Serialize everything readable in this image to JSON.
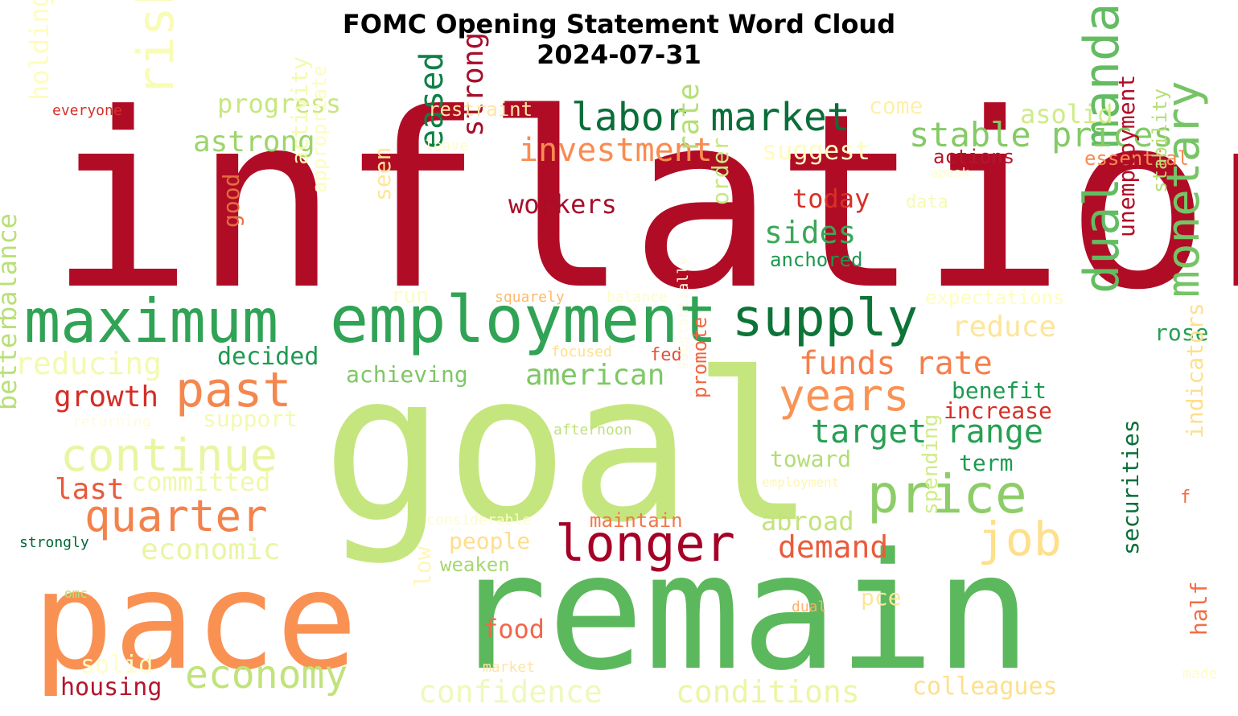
{
  "chart_data": {
    "type": "wordcloud",
    "title": "FOMC Opening Statement Word Cloud",
    "subtitle": "2024-07-31",
    "colormap": "RdYlGn",
    "words": [
      {
        "text": "inflation",
        "color": "#b10c26"
      },
      {
        "text": "goal",
        "color": "#c5e67e"
      },
      {
        "text": "remain",
        "color": "#5cb85c"
      },
      {
        "text": "pace",
        "color": "#f99153"
      },
      {
        "text": "employment",
        "color": "#30a355"
      },
      {
        "text": "maximum",
        "color": "#30a355"
      },
      {
        "text": "supply",
        "color": "#0d7437"
      },
      {
        "text": "monetary",
        "color": "#75c465"
      },
      {
        "text": "dual mandate",
        "color": "#63bc62"
      },
      {
        "text": "labor market",
        "color": "#0b6e3a"
      },
      {
        "text": "stable prices",
        "color": "#84ca66"
      },
      {
        "text": "investment",
        "color": "#f88c51"
      },
      {
        "text": "risks",
        "color": "#f8fcb5"
      },
      {
        "text": "price",
        "color": "#8ccd67"
      },
      {
        "text": "job",
        "color": "#fee08b"
      },
      {
        "text": "years",
        "color": "#f99355"
      },
      {
        "text": "longer",
        "color": "#a50026"
      },
      {
        "text": "past",
        "color": "#f4874d"
      },
      {
        "text": "continue",
        "color": "#eaf5a3"
      },
      {
        "text": "quarter",
        "color": "#f3824b"
      },
      {
        "text": "economy",
        "color": "#c0e37b"
      },
      {
        "text": "target range",
        "color": "#279f53"
      },
      {
        "text": "funds rate",
        "color": "#f67f4b"
      },
      {
        "text": "american",
        "color": "#7ec765"
      },
      {
        "text": "sides",
        "color": "#3aa757"
      },
      {
        "text": "eased",
        "color": "#0f8045"
      },
      {
        "text": "strong",
        "color": "#a50f2b"
      },
      {
        "text": "progress",
        "color": "#c7e77f"
      },
      {
        "text": "astrong",
        "color": "#9cd56b"
      },
      {
        "text": "workers",
        "color": "#a70d2a"
      },
      {
        "text": "today",
        "color": "#d73027"
      },
      {
        "text": "anchored",
        "color": "#1a9850"
      },
      {
        "text": "rate",
        "color": "#b5df75"
      },
      {
        "text": "order",
        "color": "#c8e77f"
      },
      {
        "text": "seen",
        "color": "#fee699"
      },
      {
        "text": "good",
        "color": "#e46d41"
      },
      {
        "text": "activity",
        "color": "#f4fab0"
      },
      {
        "text": "appropriate",
        "color": "#fbfdc0"
      },
      {
        "text": "holdings",
        "color": "#fffcbb"
      },
      {
        "text": "everyone",
        "color": "#d73027"
      },
      {
        "text": "restraint",
        "color": "#fee6a3"
      },
      {
        "text": "come",
        "color": "#fef0a7"
      },
      {
        "text": "suggest",
        "color": "#fffbc0"
      },
      {
        "text": "asolid",
        "color": "#cfeb86"
      },
      {
        "text": "actions",
        "color": "#b3172c"
      },
      {
        "text": "essential",
        "color": "#f88c51"
      },
      {
        "text": "leave",
        "color": "#fefcc8"
      },
      {
        "text": "apeak",
        "color": "#fefdd0"
      },
      {
        "text": "data",
        "color": "#f6fbb2"
      },
      {
        "text": "reduce",
        "color": "#fee59a"
      },
      {
        "text": "expectations",
        "color": "#fefebd"
      },
      {
        "text": "rose",
        "color": "#279f53"
      },
      {
        "text": "stability",
        "color": "#b5df75"
      },
      {
        "text": "unemployment",
        "color": "#b10c26"
      },
      {
        "text": "decided",
        "color": "#1e9a51"
      },
      {
        "text": "achieving",
        "color": "#7ec765"
      },
      {
        "text": "reducing",
        "color": "#f3faaf"
      },
      {
        "text": "growth",
        "color": "#d42d27"
      },
      {
        "text": "run",
        "color": "#fffcc3"
      },
      {
        "text": "squarely",
        "color": "#fdb96c"
      },
      {
        "text": "balance",
        "color": "#fefcc6"
      },
      {
        "text": "focused",
        "color": "#fee08b"
      },
      {
        "text": "fed",
        "color": "#e5503a"
      },
      {
        "text": "benefit",
        "color": "#1c9a51"
      },
      {
        "text": "increase",
        "color": "#d62f27"
      },
      {
        "text": "support",
        "color": "#f3faaf"
      },
      {
        "text": "returning",
        "color": "#fffbdf"
      },
      {
        "text": "better",
        "color": "#b9e078"
      },
      {
        "text": "balance",
        "color": "#b9e078"
      },
      {
        "text": "afternoon",
        "color": "#bfe27b"
      },
      {
        "text": "promote",
        "color": "#f16640"
      },
      {
        "text": "substantially",
        "color": "#fffce0"
      },
      {
        "text": "toward",
        "color": "#b1de72"
      },
      {
        "text": "term",
        "color": "#1e9a51"
      },
      {
        "text": "committed",
        "color": "#f0f8ab"
      },
      {
        "text": "last",
        "color": "#e85a3c"
      },
      {
        "text": "employment",
        "color": "#fef6b5"
      },
      {
        "text": "abroad",
        "color": "#c2e37c"
      },
      {
        "text": "maintain",
        "color": "#f2774a"
      },
      {
        "text": "considerable",
        "color": "#fefccb"
      },
      {
        "text": "people",
        "color": "#fede8c"
      },
      {
        "text": "demand",
        "color": "#ea5c3d"
      },
      {
        "text": "economic",
        "color": "#eaf5a3"
      },
      {
        "text": "strongly",
        "color": "#006837"
      },
      {
        "text": "weaken",
        "color": "#a5d86e"
      },
      {
        "text": "spending",
        "color": "#d1ec88"
      },
      {
        "text": "securities",
        "color": "#0b6e3a"
      },
      {
        "text": "half",
        "color": "#f46d43"
      },
      {
        "text": "indicators",
        "color": "#fee08b"
      },
      {
        "text": "f",
        "color": "#f46d43"
      },
      {
        "text": "omc",
        "color": "#b9e078"
      },
      {
        "text": "low",
        "color": "#fff6b8"
      },
      {
        "text": "pce",
        "color": "#fee59a"
      },
      {
        "text": "dual",
        "color": "#fdb06a"
      },
      {
        "text": "food",
        "color": "#f1674a"
      },
      {
        "text": "solid",
        "color": "#fffec6"
      },
      {
        "text": "market",
        "color": "#fee4a0"
      },
      {
        "text": "housing",
        "color": "#b3172c"
      },
      {
        "text": "confidence",
        "color": "#f0f8bb"
      },
      {
        "text": "conditions",
        "color": "#edf6a4"
      },
      {
        "text": "colleagues",
        "color": "#fee08b"
      },
      {
        "text": "made",
        "color": "#fefccb"
      }
    ]
  }
}
